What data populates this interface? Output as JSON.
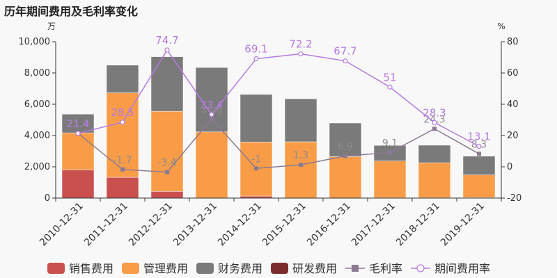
{
  "title": "历年期间费用及毛利率变化",
  "chart_data": {
    "type": "bar",
    "title": "历年期间费用及毛利率变化",
    "categories": [
      "2010-12-31",
      "2011-12-31",
      "2012-12-31",
      "2013-12-31",
      "2014-12-31",
      "2015-12-31",
      "2016-12-31",
      "2017-12-31",
      "2018-12-31",
      "2019-12-31"
    ],
    "left_axis": {
      "unit": "万",
      "min": 0,
      "max": 10000,
      "ticks": [
        "0",
        "2,000",
        "4,000",
        "6,000",
        "8,000",
        "10,000"
      ]
    },
    "right_axis": {
      "unit": "%",
      "min": -20,
      "max": 80,
      "ticks": [
        "-20",
        "0",
        "20",
        "40",
        "60",
        "80"
      ]
    },
    "series": [
      {
        "name": "销售费用",
        "kind": "bar",
        "color": "#c9504f",
        "values": [
          1800,
          1330,
          430,
          0,
          130,
          0,
          0,
          20,
          20,
          30
        ]
      },
      {
        "name": "管理费用",
        "kind": "bar",
        "color": "#f89c48",
        "values": [
          2370,
          5400,
          5120,
          4230,
          3450,
          3600,
          2650,
          2350,
          2240,
          1450
        ]
      },
      {
        "name": "财务费用",
        "kind": "bar",
        "color": "#7a7a7a",
        "values": [
          1200,
          1770,
          3490,
          4120,
          3050,
          2750,
          2150,
          1000,
          1120,
          1200
        ]
      },
      {
        "name": "研发费用",
        "kind": "bar",
        "color": "#7b2b2b",
        "values": [
          0,
          0,
          0,
          0,
          0,
          0,
          0,
          0,
          0,
          0
        ]
      },
      {
        "name": "毛利率",
        "kind": "line",
        "color": "#8c7a92",
        "values": [
          21.4,
          -1.7,
          -3.4,
          30.6,
          -1,
          1.3,
          6.9,
          9.1,
          24.3,
          8.3
        ],
        "labels": [
          "21.4",
          "-1.7",
          "-3.4",
          "30.6",
          "-1",
          "1.3",
          "6.9",
          "9.1",
          "24.3",
          "8.3"
        ]
      },
      {
        "name": "期间费用率",
        "kind": "line",
        "color": "#b57ae0",
        "values": [
          21.4,
          28.5,
          74.7,
          33.4,
          69.1,
          72.2,
          67.7,
          51,
          28.3,
          13.1
        ],
        "labels": [
          "21.4",
          "28.5",
          "74.7",
          "33.4",
          "69.1",
          "72.2",
          "67.7",
          "51",
          "28.3",
          "13.1"
        ]
      }
    ]
  }
}
